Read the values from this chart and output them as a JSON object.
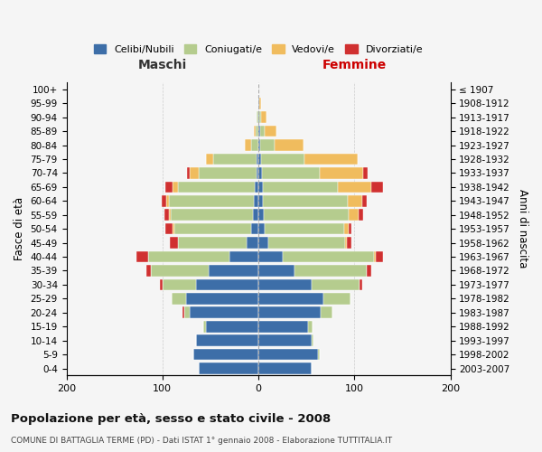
{
  "age_groups": [
    "0-4",
    "5-9",
    "10-14",
    "15-19",
    "20-24",
    "25-29",
    "30-34",
    "35-39",
    "40-44",
    "45-49",
    "50-54",
    "55-59",
    "60-64",
    "65-69",
    "70-74",
    "75-79",
    "80-84",
    "85-89",
    "90-94",
    "95-99",
    "100+"
  ],
  "birth_years": [
    "2003-2007",
    "1998-2002",
    "1993-1997",
    "1988-1992",
    "1983-1987",
    "1978-1982",
    "1973-1977",
    "1968-1972",
    "1963-1967",
    "1958-1962",
    "1953-1957",
    "1948-1952",
    "1943-1947",
    "1938-1942",
    "1933-1937",
    "1928-1932",
    "1923-1927",
    "1918-1922",
    "1913-1917",
    "1908-1912",
    "≤ 1907"
  ],
  "males": {
    "celibi": [
      62,
      68,
      65,
      55,
      72,
      75,
      65,
      52,
      30,
      12,
      8,
      6,
      5,
      4,
      2,
      2,
      0,
      0,
      0,
      0,
      0
    ],
    "coniugati": [
      0,
      0,
      0,
      2,
      5,
      15,
      35,
      60,
      85,
      72,
      80,
      85,
      88,
      80,
      60,
      45,
      8,
      3,
      2,
      0,
      0
    ],
    "vedovi": [
      0,
      0,
      0,
      0,
      0,
      0,
      0,
      0,
      0,
      0,
      1,
      2,
      3,
      5,
      10,
      8,
      6,
      2,
      0,
      0,
      0
    ],
    "divorziati": [
      0,
      0,
      0,
      0,
      2,
      0,
      3,
      5,
      12,
      8,
      8,
      5,
      5,
      8,
      2,
      0,
      0,
      0,
      0,
      0,
      0
    ]
  },
  "females": {
    "nubili": [
      55,
      62,
      55,
      52,
      65,
      68,
      55,
      38,
      25,
      10,
      7,
      6,
      5,
      5,
      4,
      3,
      2,
      2,
      1,
      1,
      0
    ],
    "coniugate": [
      0,
      2,
      2,
      4,
      12,
      28,
      50,
      75,
      95,
      80,
      82,
      88,
      88,
      78,
      60,
      45,
      15,
      5,
      2,
      0,
      0
    ],
    "vedove": [
      0,
      0,
      0,
      0,
      0,
      0,
      0,
      0,
      2,
      2,
      5,
      10,
      15,
      35,
      45,
      55,
      30,
      12,
      5,
      2,
      0
    ],
    "divorziate": [
      0,
      0,
      0,
      0,
      0,
      0,
      3,
      5,
      8,
      5,
      3,
      5,
      5,
      12,
      5,
      0,
      0,
      0,
      0,
      0,
      0
    ]
  },
  "color_celibi": "#3d6ea8",
  "color_coniugati": "#b5cc8e",
  "color_vedovi": "#f0bc5e",
  "color_divorziati": "#d03030",
  "title": "Popolazione per età, sesso e stato civile - 2008",
  "subtitle": "COMUNE DI BATTAGLIA TERME (PD) - Dati ISTAT 1° gennaio 2008 - Elaborazione TUTTITALIA.IT",
  "xlabel_left": "Maschi",
  "xlabel_right": "Femmine",
  "ylabel_left": "Fasce di età",
  "ylabel_right": "Anni di nascita",
  "xlim": 200,
  "background_color": "#f5f5f5",
  "grid_color": "#cccccc"
}
